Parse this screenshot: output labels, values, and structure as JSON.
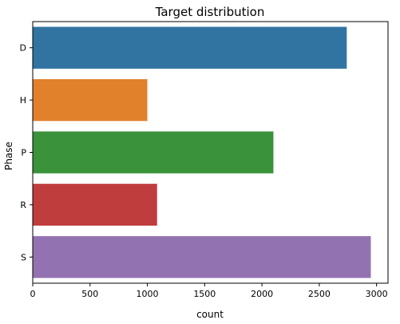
{
  "chart_data": {
    "type": "bar",
    "orientation": "horizontal",
    "title": "Target distribution",
    "xlabel": "count",
    "ylabel": "Phase",
    "categories": [
      "D",
      "H",
      "P",
      "R",
      "S"
    ],
    "values": [
      2740,
      1000,
      2100,
      1085,
      2950
    ],
    "colors": [
      "#3274a1",
      "#e1812c",
      "#3a923a",
      "#c03d3e",
      "#9372b2"
    ],
    "xlim": [
      0,
      3100
    ],
    "xticks": [
      0,
      500,
      1000,
      1500,
      2000,
      2500,
      3000
    ],
    "grid": false,
    "legend": "none"
  }
}
